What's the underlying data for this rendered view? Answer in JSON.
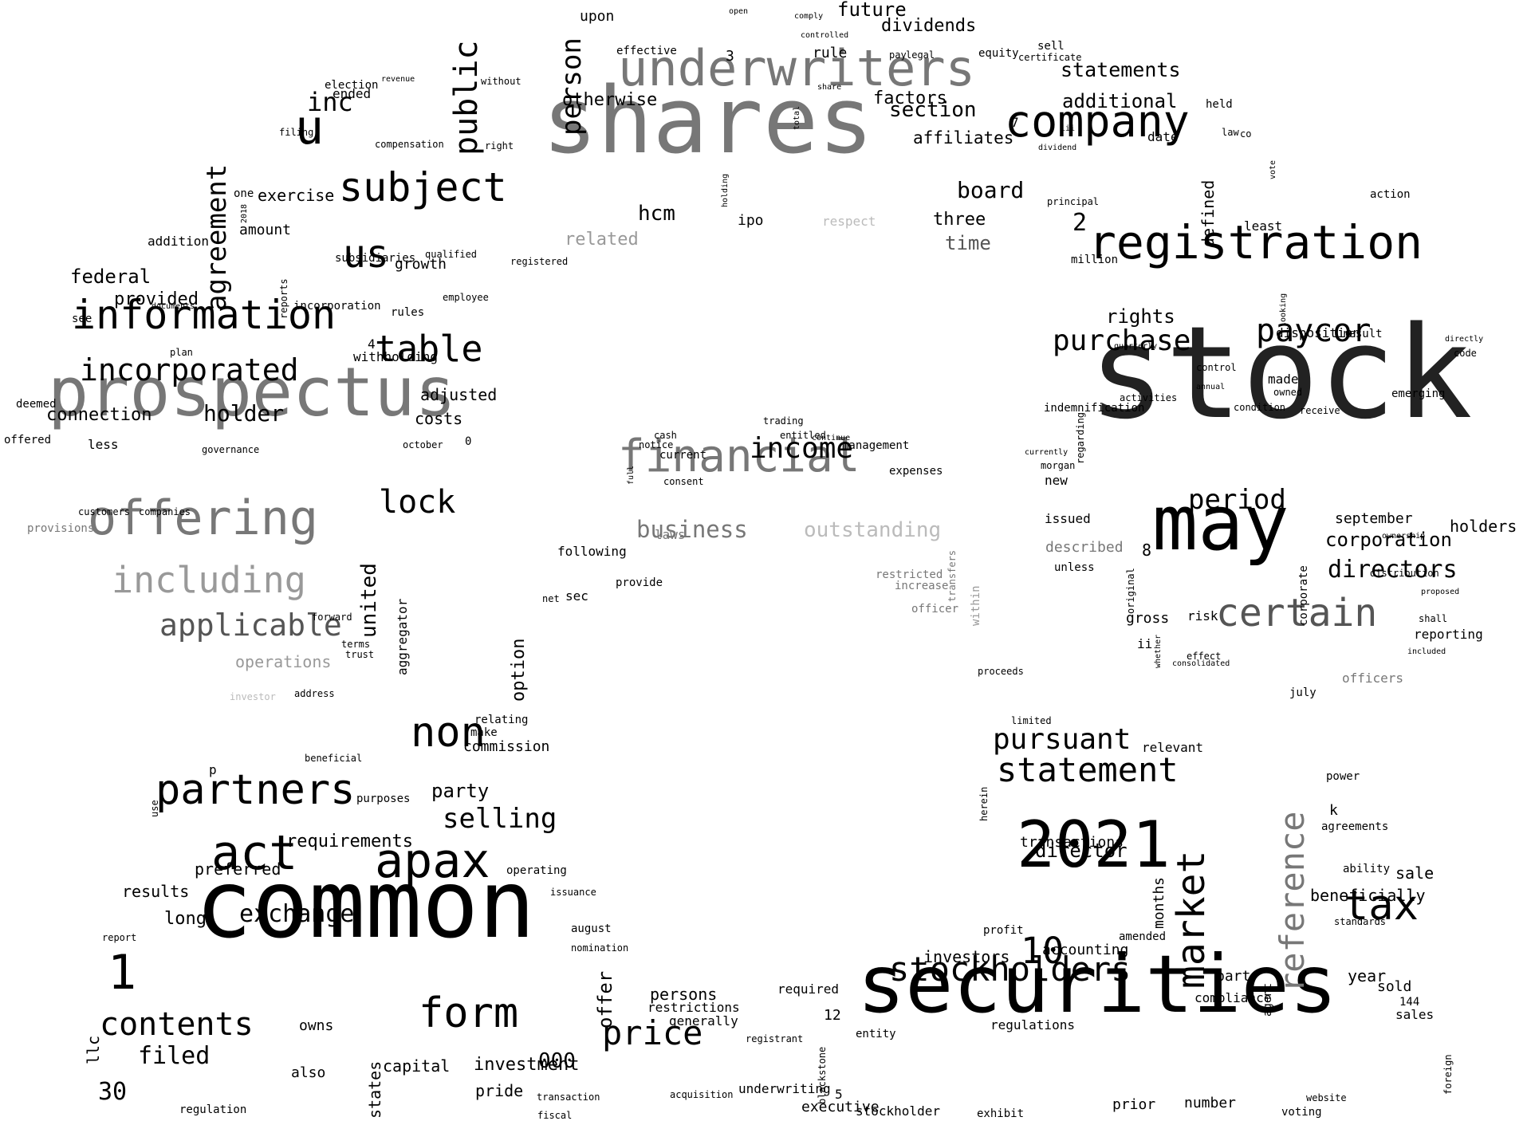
{
  "colors": {
    "background": "#ffffff",
    "black": "#000000",
    "dark": "#222222",
    "mid": "#555555",
    "gray": "#777777",
    "light": "#999999",
    "pale": "#bbbbbb"
  },
  "words": [
    {
      "t": "stock",
      "tone": "dark"
    },
    {
      "t": "common",
      "tone": "black"
    },
    {
      "t": "securities",
      "tone": "black"
    },
    {
      "t": "shares",
      "tone": "gray"
    },
    {
      "t": "prospectus",
      "tone": "gray"
    },
    {
      "t": "may",
      "tone": "black"
    },
    {
      "t": "underwriters",
      "tone": "gray"
    },
    {
      "t": "registration",
      "tone": "black"
    },
    {
      "t": "2021",
      "tone": "black"
    },
    {
      "t": "financial",
      "tone": "gray"
    },
    {
      "t": "offering",
      "tone": "gray"
    },
    {
      "t": "company",
      "tone": "black"
    },
    {
      "t": "subject",
      "tone": "black"
    },
    {
      "t": "information",
      "tone": "black"
    },
    {
      "t": "apax",
      "tone": "black"
    },
    {
      "t": "act",
      "tone": "black"
    },
    {
      "t": "partners",
      "tone": "black"
    },
    {
      "t": "certain",
      "tone": "mid"
    },
    {
      "t": "tax",
      "tone": "black"
    },
    {
      "t": "stockholders",
      "tone": "black"
    },
    {
      "t": "statement",
      "tone": "black"
    },
    {
      "t": "form",
      "tone": "black"
    },
    {
      "t": "non",
      "tone": "black"
    },
    {
      "t": "price",
      "tone": "black"
    },
    {
      "t": "contents",
      "tone": "black"
    },
    {
      "t": "including",
      "tone": "light"
    },
    {
      "t": "paycor",
      "tone": "black"
    },
    {
      "t": "incorporated",
      "tone": "black"
    },
    {
      "t": "table",
      "tone": "black"
    },
    {
      "t": "pursuant",
      "tone": "black"
    },
    {
      "t": "applicable",
      "tone": "mid"
    },
    {
      "t": "purchase",
      "tone": "black"
    },
    {
      "t": "us",
      "tone": "black"
    },
    {
      "t": "u",
      "tone": "black"
    },
    {
      "t": "inc",
      "tone": "black"
    },
    {
      "t": "income",
      "tone": "black"
    },
    {
      "t": "lock",
      "tone": "black"
    },
    {
      "t": "period",
      "tone": "black"
    },
    {
      "t": "directors",
      "tone": "black"
    },
    {
      "t": "selling",
      "tone": "black"
    },
    {
      "t": "business",
      "tone": "gray"
    },
    {
      "t": "outstanding",
      "tone": "pale"
    },
    {
      "t": "exchange",
      "tone": "black"
    },
    {
      "t": "filed",
      "tone": "black"
    },
    {
      "t": "holder",
      "tone": "black"
    },
    {
      "t": "board",
      "tone": "black"
    },
    {
      "t": "hcm",
      "tone": "black"
    },
    {
      "t": "section",
      "tone": "black"
    },
    {
      "t": "statements",
      "tone": "black"
    },
    {
      "t": "rights",
      "tone": "black"
    },
    {
      "t": "corporation",
      "tone": "black"
    },
    {
      "t": "director",
      "tone": "black"
    },
    {
      "t": "additional",
      "tone": "black"
    },
    {
      "t": "otherwise",
      "tone": "black"
    },
    {
      "t": "future",
      "tone": "black"
    },
    {
      "t": "dividends",
      "tone": "black"
    },
    {
      "t": "factors",
      "tone": "black"
    },
    {
      "t": "affiliates",
      "tone": "black"
    },
    {
      "t": "time",
      "tone": "mid"
    },
    {
      "t": "three",
      "tone": "black"
    },
    {
      "t": "related",
      "tone": "light"
    },
    {
      "t": "ipo",
      "tone": "black"
    },
    {
      "t": "respect",
      "tone": "pale"
    },
    {
      "t": "federal",
      "tone": "black"
    },
    {
      "t": "provided",
      "tone": "black"
    },
    {
      "t": "connection",
      "tone": "black"
    },
    {
      "t": "exercise",
      "tone": "black"
    },
    {
      "t": "amount",
      "tone": "black"
    },
    {
      "t": "growth",
      "tone": "black"
    },
    {
      "t": "adjusted",
      "tone": "black"
    },
    {
      "t": "costs",
      "tone": "black"
    },
    {
      "t": "operations",
      "tone": "light"
    },
    {
      "t": "requirements",
      "tone": "black"
    },
    {
      "t": "long",
      "tone": "black"
    },
    {
      "t": "results",
      "tone": "black"
    },
    {
      "t": "preferred",
      "tone": "black"
    },
    {
      "t": "party",
      "tone": "black"
    },
    {
      "t": "commission",
      "tone": "black"
    },
    {
      "t": "investment",
      "tone": "black"
    },
    {
      "t": "pride",
      "tone": "black"
    },
    {
      "t": "capital",
      "tone": "black"
    },
    {
      "t": "also",
      "tone": "black"
    },
    {
      "t": "owns",
      "tone": "black"
    },
    {
      "t": "persons",
      "tone": "black"
    },
    {
      "t": "restrictions",
      "tone": "black"
    },
    {
      "t": "generally",
      "tone": "black"
    },
    {
      "t": "required",
      "tone": "black"
    },
    {
      "t": "underwriting",
      "tone": "black"
    },
    {
      "t": "executive",
      "tone": "black"
    },
    {
      "t": "investors",
      "tone": "black"
    },
    {
      "t": "transactions",
      "tone": "black"
    },
    {
      "t": "accounting",
      "tone": "black"
    },
    {
      "t": "regulations",
      "tone": "black"
    },
    {
      "t": "stockholder",
      "tone": "black"
    },
    {
      "t": "prior",
      "tone": "black"
    },
    {
      "t": "number",
      "tone": "black"
    },
    {
      "t": "exhibit",
      "tone": "black"
    },
    {
      "t": "sale",
      "tone": "black"
    },
    {
      "t": "beneficially",
      "tone": "black"
    },
    {
      "t": "year",
      "tone": "black"
    },
    {
      "t": "sold",
      "tone": "black"
    },
    {
      "t": "part",
      "tone": "black"
    },
    {
      "t": "compliance",
      "tone": "black"
    },
    {
      "t": "sales",
      "tone": "black"
    },
    {
      "t": "voting",
      "tone": "black"
    },
    {
      "t": "holders",
      "tone": "black"
    },
    {
      "t": "september",
      "tone": "black"
    },
    {
      "t": "reporting",
      "tone": "black"
    },
    {
      "t": "officers",
      "tone": "gray"
    },
    {
      "t": "gross",
      "tone": "black"
    },
    {
      "t": "risk",
      "tone": "black"
    },
    {
      "t": "new",
      "tone": "black"
    },
    {
      "t": "issued",
      "tone": "black"
    },
    {
      "t": "described",
      "tone": "gray"
    },
    {
      "t": "unless",
      "tone": "black"
    },
    {
      "t": "made",
      "tone": "black"
    },
    {
      "t": "emerging",
      "tone": "black"
    },
    {
      "t": "disposition",
      "tone": "black"
    },
    {
      "t": "result",
      "tone": "black"
    },
    {
      "t": "least",
      "tone": "black"
    },
    {
      "t": "million",
      "tone": "black"
    },
    {
      "t": "held",
      "tone": "black"
    },
    {
      "t": "date",
      "tone": "black"
    },
    {
      "t": "action",
      "tone": "black"
    },
    {
      "t": "rule",
      "tone": "black"
    },
    {
      "t": "upon",
      "tone": "black"
    },
    {
      "t": "effective",
      "tone": "black"
    },
    {
      "t": "equity",
      "tone": "black"
    },
    {
      "t": "sell",
      "tone": "black"
    },
    {
      "t": "law",
      "tone": "black"
    },
    {
      "t": "co",
      "tone": "black"
    },
    {
      "t": "election",
      "tone": "black"
    },
    {
      "t": "ended",
      "tone": "black"
    },
    {
      "t": "one",
      "tone": "black"
    },
    {
      "t": "addition",
      "tone": "black"
    },
    {
      "t": "subsidiaries",
      "tone": "black"
    },
    {
      "t": "qualified",
      "tone": "black"
    },
    {
      "t": "incorporation",
      "tone": "black"
    },
    {
      "t": "rules",
      "tone": "black"
    },
    {
      "t": "employee",
      "tone": "black"
    },
    {
      "t": "registered",
      "tone": "black"
    },
    {
      "t": "withholding",
      "tone": "black"
    },
    {
      "t": "see",
      "tone": "black"
    },
    {
      "t": "deemed",
      "tone": "black"
    },
    {
      "t": "offered",
      "tone": "black"
    },
    {
      "t": "less",
      "tone": "black"
    },
    {
      "t": "provisions",
      "tone": "gray"
    },
    {
      "t": "companies",
      "tone": "black"
    },
    {
      "t": "customers",
      "tone": "black"
    },
    {
      "t": "forward",
      "tone": "black"
    },
    {
      "t": "terms",
      "tone": "black"
    },
    {
      "t": "trust",
      "tone": "black"
    },
    {
      "t": "address",
      "tone": "black"
    },
    {
      "t": "investor",
      "tone": "pale"
    },
    {
      "t": "following",
      "tone": "black"
    },
    {
      "t": "provide",
      "tone": "black"
    },
    {
      "t": "sec",
      "tone": "black"
    },
    {
      "t": "laws",
      "tone": "gray"
    },
    {
      "t": "current",
      "tone": "black"
    },
    {
      "t": "consent",
      "tone": "black"
    },
    {
      "t": "notice",
      "tone": "black"
    },
    {
      "t": "management",
      "tone": "black"
    },
    {
      "t": "expenses",
      "tone": "black"
    },
    {
      "t": "restricted",
      "tone": "gray"
    },
    {
      "t": "increase",
      "tone": "gray"
    },
    {
      "t": "officer",
      "tone": "gray"
    },
    {
      "t": "proceeds",
      "tone": "black"
    },
    {
      "t": "limited",
      "tone": "black"
    },
    {
      "t": "relevant",
      "tone": "black"
    },
    {
      "t": "power",
      "tone": "black"
    },
    {
      "t": "agreements",
      "tone": "black"
    },
    {
      "t": "ability",
      "tone": "black"
    },
    {
      "t": "standards",
      "tone": "black"
    },
    {
      "t": "profit",
      "tone": "black"
    },
    {
      "t": "amended",
      "tone": "black"
    },
    {
      "t": "relating",
      "tone": "black"
    },
    {
      "t": "make",
      "tone": "black"
    },
    {
      "t": "operating",
      "tone": "black"
    },
    {
      "t": "purposes",
      "tone": "black"
    },
    {
      "t": "beneficial",
      "tone": "black"
    },
    {
      "t": "regulation",
      "tone": "black"
    },
    {
      "t": "transaction",
      "tone": "black"
    },
    {
      "t": "fiscal",
      "tone": "black"
    },
    {
      "t": "registrant",
      "tone": "black"
    },
    {
      "t": "acquisition",
      "tone": "black"
    },
    {
      "t": "entity",
      "tone": "black"
    },
    {
      "t": "website",
      "tone": "black"
    },
    {
      "t": "report",
      "tone": "black"
    },
    {
      "t": "august",
      "tone": "black"
    },
    {
      "t": "issuance",
      "tone": "black"
    },
    {
      "t": "nomination",
      "tone": "black"
    },
    {
      "t": "revenue",
      "tone": "black"
    },
    {
      "t": "filing",
      "tone": "black"
    },
    {
      "t": "compensation",
      "tone": "black"
    },
    {
      "t": "documents",
      "tone": "black"
    },
    {
      "t": "plan",
      "tone": "black"
    },
    {
      "t": "governance",
      "tone": "black"
    },
    {
      "t": "october",
      "tone": "black"
    },
    {
      "t": "trading",
      "tone": "black"
    },
    {
      "t": "cash",
      "tone": "black"
    },
    {
      "t": "entitled",
      "tone": "black"
    },
    {
      "t": "continue",
      "tone": "black"
    },
    {
      "t": "net",
      "tone": "black"
    },
    {
      "t": "principal",
      "tone": "black"
    },
    {
      "t": "dividend",
      "tone": "black"
    },
    {
      "t": "without",
      "tone": "black"
    },
    {
      "t": "right",
      "tone": "black"
    },
    {
      "t": "share",
      "tone": "black"
    },
    {
      "t": "open",
      "tone": "black"
    },
    {
      "t": "comply",
      "tone": "black"
    },
    {
      "t": "controlled",
      "tone": "black"
    },
    {
      "t": "pay",
      "tone": "black"
    },
    {
      "t": "legal",
      "tone": "black"
    },
    {
      "t": "certificate",
      "tone": "black"
    },
    {
      "t": "july",
      "tone": "black"
    },
    {
      "t": "shall",
      "tone": "black"
    },
    {
      "t": "code",
      "tone": "black"
    },
    {
      "t": "directly",
      "tone": "black"
    },
    {
      "t": "quarterly",
      "tone": "black"
    },
    {
      "t": "ownership",
      "tone": "black"
    },
    {
      "t": "distribution",
      "tone": "black"
    },
    {
      "t": "proposed",
      "tone": "black"
    },
    {
      "t": "condition",
      "tone": "black"
    },
    {
      "t": "activities",
      "tone": "black"
    },
    {
      "t": "indemnification",
      "tone": "black"
    },
    {
      "t": "control",
      "tone": "black"
    },
    {
      "t": "annual",
      "tone": "black"
    },
    {
      "t": "owned",
      "tone": "black"
    },
    {
      "t": "receive",
      "tone": "black"
    },
    {
      "t": "morgan",
      "tone": "black"
    },
    {
      "t": "currently",
      "tone": "black"
    },
    {
      "t": "effect",
      "tone": "black"
    },
    {
      "t": "consolidated",
      "tone": "black"
    },
    {
      "t": "included",
      "tone": "black"
    },
    {
      "t": "2",
      "tone": "black"
    },
    {
      "t": "1",
      "tone": "black"
    },
    {
      "t": "10",
      "tone": "black"
    },
    {
      "t": "30",
      "tone": "black"
    },
    {
      "t": "000",
      "tone": "black"
    },
    {
      "t": "8",
      "tone": "black"
    },
    {
      "t": "ii",
      "tone": "black"
    },
    {
      "t": "k",
      "tone": "black"
    },
    {
      "t": "144",
      "tone": "black"
    },
    {
      "t": "12",
      "tone": "black"
    },
    {
      "t": "5",
      "tone": "black"
    },
    {
      "t": "3",
      "tone": "black"
    },
    {
      "t": "7",
      "tone": "black"
    },
    {
      "t": "4",
      "tone": "black"
    },
    {
      "t": "0",
      "tone": "black"
    },
    {
      "t": "p",
      "tone": "black"
    },
    {
      "t": "iii",
      "tone": "black"
    },
    {
      "t": "agreement",
      "tone": "black",
      "rot": true
    },
    {
      "t": "public",
      "tone": "black",
      "rot": true
    },
    {
      "t": "person",
      "tone": "black",
      "rot": true
    },
    {
      "t": "united",
      "tone": "black",
      "rot": true
    },
    {
      "t": "aggregator",
      "tone": "black",
      "rot": true
    },
    {
      "t": "option",
      "tone": "black",
      "rot": true
    },
    {
      "t": "offer",
      "tone": "black",
      "rot": true
    },
    {
      "t": "market",
      "tone": "black",
      "rot": true
    },
    {
      "t": "reference",
      "tone": "gray",
      "rot": true
    },
    {
      "t": "months",
      "tone": "black",
      "rot": true
    },
    {
      "t": "defined",
      "tone": "black",
      "rot": true
    },
    {
      "t": "corporate",
      "tone": "black",
      "rot": true
    },
    {
      "t": "within",
      "tone": "light",
      "rot": true
    },
    {
      "t": "transfers",
      "tone": "gray",
      "rot": true
    },
    {
      "t": "states",
      "tone": "black",
      "rot": true
    },
    {
      "t": "llc",
      "tone": "black",
      "rot": true
    },
    {
      "t": "use",
      "tone": "black",
      "rot": true
    },
    {
      "t": "foreign",
      "tone": "black",
      "rot": true
    },
    {
      "t": "agent",
      "tone": "black",
      "rot": true
    },
    {
      "t": "blackstone",
      "tone": "black",
      "rot": true
    },
    {
      "t": "regarding",
      "tone": "black",
      "rot": true
    },
    {
      "t": "original",
      "tone": "black",
      "rot": true
    },
    {
      "t": "whether",
      "tone": "black",
      "rot": true
    },
    {
      "t": "reports",
      "tone": "black",
      "rot": true
    },
    {
      "t": "2018",
      "tone": "black",
      "rot": true
    },
    {
      "t": "full",
      "tone": "black",
      "rot": true
    },
    {
      "t": "total",
      "tone": "black",
      "rot": true
    },
    {
      "t": "holding",
      "tone": "black",
      "rot": true
    },
    {
      "t": "herein",
      "tone": "black",
      "rot": true
    },
    {
      "t": "looking",
      "tone": "black",
      "rot": true
    },
    {
      "t": "vote",
      "tone": "black",
      "rot": true
    }
  ]
}
